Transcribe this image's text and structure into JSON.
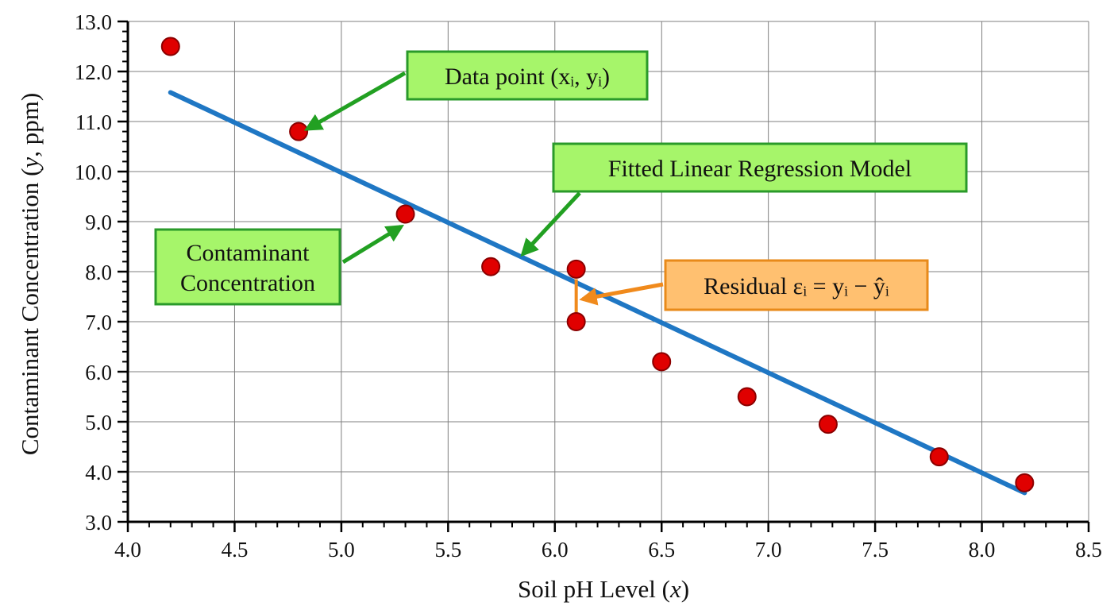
{
  "chart_data": {
    "type": "scatter",
    "x_axis": {
      "label_prefix": "Soil pH Level (",
      "label_var": "x",
      "label_suffix": ")",
      "range": [
        4.0,
        8.5
      ],
      "ticks": [
        4.0,
        4.5,
        5.0,
        5.5,
        6.0,
        6.5,
        7.0,
        7.5,
        8.0,
        8.5
      ],
      "tick_labels": [
        "4.0",
        "4.5",
        "5.0",
        "5.5",
        "6.0",
        "6.5",
        "7.0",
        "7.5",
        "8.0",
        "8.5"
      ]
    },
    "y_axis": {
      "label_prefix": "Contaminant Concentration (",
      "label_var": "y",
      "label_suffix": ", ppm)",
      "range": [
        3.0,
        13.0
      ],
      "ticks": [
        3,
        4,
        5,
        6,
        7,
        8,
        9,
        10,
        11,
        12,
        13
      ],
      "tick_labels": [
        "3.0",
        "4.0",
        "5.0",
        "6.0",
        "7.0",
        "8.0",
        "9.0",
        "10.0",
        "11.0",
        "12.0",
        "13.0"
      ]
    },
    "grid": true,
    "points": [
      {
        "x": 4.2,
        "y": 12.5
      },
      {
        "x": 4.8,
        "y": 10.8
      },
      {
        "x": 5.3,
        "y": 9.15
      },
      {
        "x": 5.7,
        "y": 8.1
      },
      {
        "x": 6.1,
        "y": 8.05
      },
      {
        "x": 6.1,
        "y": 7.0
      },
      {
        "x": 6.5,
        "y": 6.2
      },
      {
        "x": 6.9,
        "y": 5.5
      },
      {
        "x": 7.28,
        "y": 4.95
      },
      {
        "x": 7.8,
        "y": 4.3
      },
      {
        "x": 8.2,
        "y": 3.78
      }
    ],
    "regression_line": {
      "start": {
        "x": 4.2,
        "y": 11.58
      },
      "end": {
        "x": 8.2,
        "y": 3.58
      }
    },
    "residual": {
      "x": 6.1,
      "y_observed": 7.0,
      "y_fitted": 7.85
    },
    "annotations": {
      "data_point": {
        "text": "Data point (xᵢ, yᵢ)",
        "target": {
          "x": 4.84,
          "y": 10.85
        }
      },
      "fitted_model": {
        "text": "Fitted Linear Regression Model",
        "target": {
          "x": 5.85,
          "y": 8.35
        }
      },
      "contaminant": {
        "line1": "Contaminant",
        "line2": "Concentration",
        "target": {
          "x": 5.28,
          "y": 8.9
        }
      },
      "residual": {
        "text": "Residual εᵢ = yᵢ − ŷᵢ",
        "target": {
          "x": 6.13,
          "y": 7.45
        }
      }
    },
    "colors": {
      "points": "#e00000",
      "point_outline": "#8b0000",
      "line": "#1f77c4",
      "green_box": "#a6f56a",
      "green_border": "#2a9a2a",
      "green_arrow": "#22a022",
      "orange_box": "#ffc070",
      "orange_border": "#e88a1a",
      "orange_arrow": "#f08a1c",
      "grid": "#7f7f7f"
    }
  }
}
